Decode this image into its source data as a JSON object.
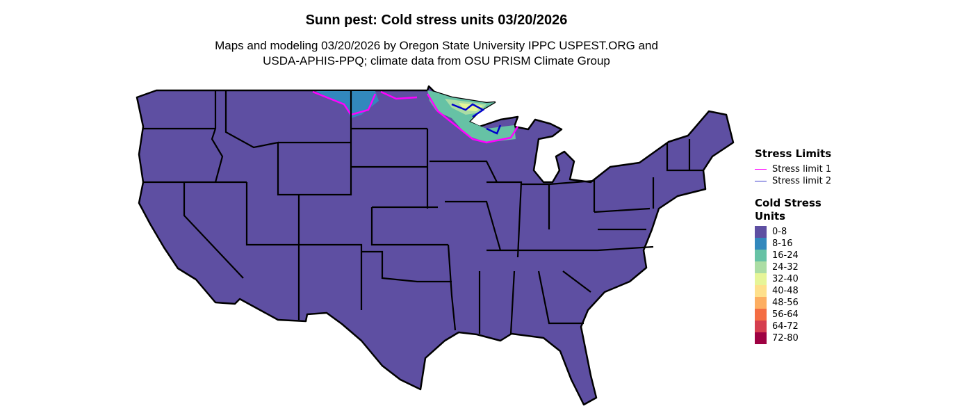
{
  "title": "Sunn pest: Cold stress units 03/20/2026",
  "subtitle_line1": "Maps and modeling 03/20/2026 by Oregon State University IPPC USPEST.ORG and",
  "subtitle_line2": "USDA-APHIS-PPQ; climate data from OSU PRISM Climate Group",
  "legend": {
    "limits_title": "Stress Limits",
    "limits": [
      {
        "label": "Stress limit 1",
        "color": "#ff00ff"
      },
      {
        "label": "Stress limit 2",
        "color": "#0000cc"
      }
    ],
    "units_title_line1": "Cold Stress",
    "units_title_line2": "Units",
    "bins": [
      {
        "label": "0-8",
        "color": "#5e4fa2"
      },
      {
        "label": "8-16",
        "color": "#3288bd"
      },
      {
        "label": "16-24",
        "color": "#66c2a5"
      },
      {
        "label": "24-32",
        "color": "#abdda4"
      },
      {
        "label": "32-40",
        "color": "#e6f598"
      },
      {
        "label": "40-48",
        "color": "#fee08b"
      },
      {
        "label": "48-56",
        "color": "#fdae61"
      },
      {
        "label": "56-64",
        "color": "#f46d43"
      },
      {
        "label": "64-72",
        "color": "#d53e4f"
      },
      {
        "label": "72-80",
        "color": "#9e0142"
      }
    ]
  }
}
